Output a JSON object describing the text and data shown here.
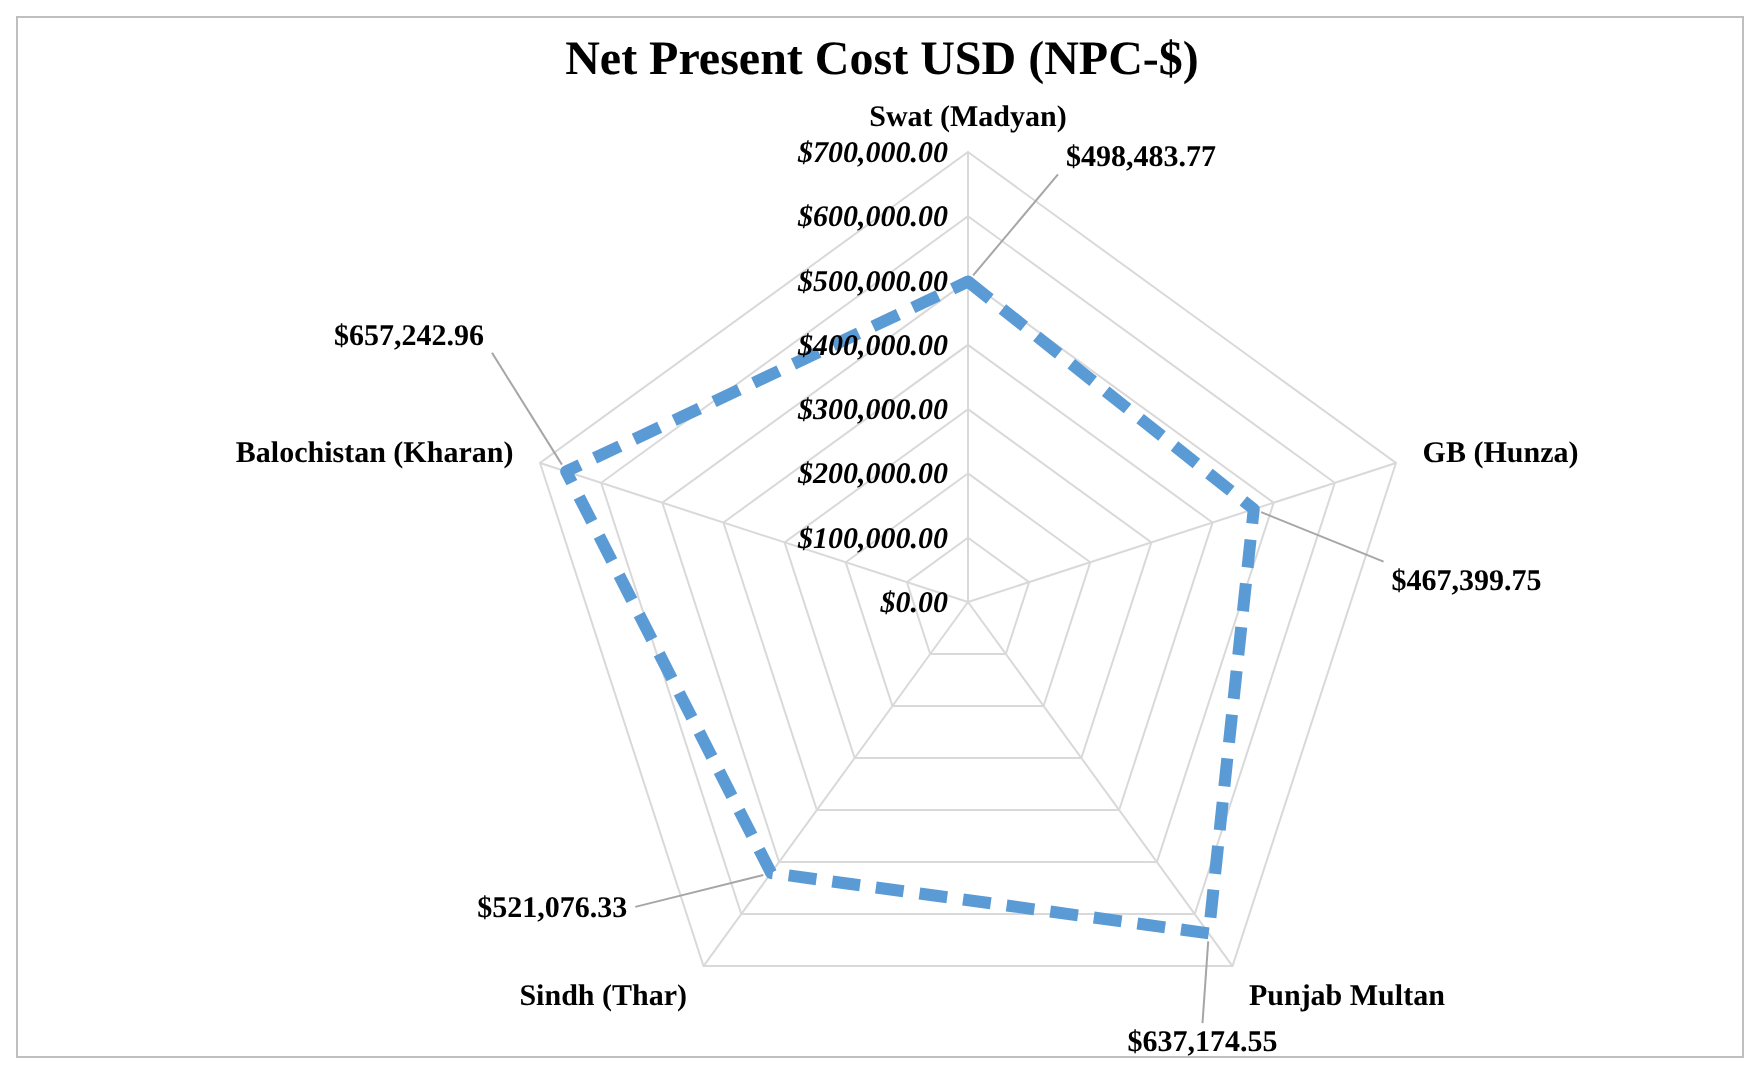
{
  "chart_data": {
    "type": "radar",
    "title": "Net Present Cost USD (NPC-$)",
    "categories": [
      "Swat (Madyan)",
      "GB (Hunza)",
      "Punjab Multan",
      "Sindh (Thar)",
      "Balochistan (Kharan)"
    ],
    "series": [
      {
        "color": "#5b9bd5",
        "values": [
          498483.77,
          467399.75,
          637174.55,
          521076.33,
          657242.96
        ],
        "value_labels": [
          "$498,483.77",
          "$467,399.75",
          "$637,174.55",
          "$521,076.33",
          "$657,242.96"
        ]
      }
    ],
    "ylim": [
      0,
      700000
    ],
    "yticks": [
      {
        "value": 0,
        "label": "$0.00"
      },
      {
        "value": 100000,
        "label": "$100,000.00"
      },
      {
        "value": 200000,
        "label": "$200,000.00"
      },
      {
        "value": 300000,
        "label": "$300,000.00"
      },
      {
        "value": 400000,
        "label": "$400,000.00"
      },
      {
        "value": 500000,
        "label": "$500,000.00"
      },
      {
        "value": 600000,
        "label": "$600,000.00"
      },
      {
        "value": 700000,
        "label": "$700,000.00"
      }
    ],
    "grid": true,
    "marker": "none",
    "line_style": "dashed"
  }
}
